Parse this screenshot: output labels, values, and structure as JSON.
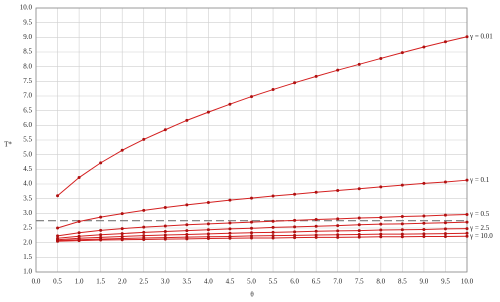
{
  "chart_data": {
    "type": "line",
    "x_label": "θ",
    "y_label": "T*",
    "x": [
      0.5,
      1.0,
      1.5,
      2.0,
      2.5,
      3.0,
      3.5,
      4.0,
      4.5,
      5.0,
      5.5,
      6.0,
      6.5,
      7.0,
      7.5,
      8.0,
      8.5,
      9.0,
      9.5,
      10.0
    ],
    "series": [
      {
        "name": "γ = 0.01",
        "values": [
          3.6,
          4.22,
          4.72,
          5.15,
          5.52,
          5.85,
          6.17,
          6.45,
          6.72,
          6.98,
          7.22,
          7.45,
          7.67,
          7.88,
          8.08,
          8.28,
          8.48,
          8.67,
          8.85,
          9.02
        ]
      },
      {
        "name": "γ = 0.1",
        "values": [
          2.5,
          2.72,
          2.87,
          2.99,
          3.1,
          3.2,
          3.29,
          3.37,
          3.45,
          3.52,
          3.59,
          3.65,
          3.72,
          3.78,
          3.84,
          3.9,
          3.96,
          4.02,
          4.07,
          4.13
        ]
      },
      {
        "name": "γ = 0.5",
        "values": [
          2.23,
          2.34,
          2.42,
          2.48,
          2.53,
          2.57,
          2.61,
          2.64,
          2.67,
          2.7,
          2.73,
          2.76,
          2.79,
          2.81,
          2.84,
          2.86,
          2.89,
          2.91,
          2.94,
          2.96
        ]
      },
      {
        "values": [
          2.15,
          2.22,
          2.27,
          2.31,
          2.35,
          2.38,
          2.41,
          2.44,
          2.47,
          2.49,
          2.52,
          2.54,
          2.56,
          2.58,
          2.61,
          2.63,
          2.64,
          2.66,
          2.68,
          2.7
        ]
      },
      {
        "name": "γ = 2.5",
        "values": [
          2.1,
          2.15,
          2.18,
          2.21,
          2.24,
          2.26,
          2.28,
          2.3,
          2.32,
          2.34,
          2.35,
          2.37,
          2.39,
          2.4,
          2.41,
          2.43,
          2.44,
          2.45,
          2.47,
          2.48
        ]
      },
      {
        "values": [
          2.07,
          2.1,
          2.12,
          2.14,
          2.16,
          2.17,
          2.19,
          2.2,
          2.21,
          2.23,
          2.24,
          2.25,
          2.26,
          2.27,
          2.28,
          2.29,
          2.29,
          2.3,
          2.31,
          2.32
        ]
      },
      {
        "name": "γ = 10.0",
        "values": [
          2.05,
          2.07,
          2.09,
          2.1,
          2.11,
          2.12,
          2.13,
          2.14,
          2.15,
          2.16,
          2.16,
          2.17,
          2.18,
          2.18,
          2.19,
          2.2,
          2.2,
          2.21,
          2.21,
          2.22
        ]
      }
    ],
    "color": "#d42020",
    "hline": 2.75,
    "xlim": [
      0,
      10
    ],
    "ylim": [
      1,
      10
    ],
    "xticks": [
      {
        "value": 0,
        "label": "0.0"
      },
      0.5,
      {
        "value": 1,
        "label": "1.0"
      },
      1.5,
      {
        "value": 2,
        "label": "2.0"
      },
      2.5,
      {
        "value": 3,
        "label": "3.0"
      },
      3.5,
      {
        "value": 4,
        "label": "4.0"
      },
      4.5,
      {
        "value": 5,
        "label": "5.0"
      },
      5.5,
      {
        "value": 6,
        "label": "6.0"
      },
      6.5,
      {
        "value": 7,
        "label": "7.0"
      },
      7.5,
      {
        "value": 8,
        "label": "8.0"
      },
      8.5,
      {
        "value": 9,
        "label": "9.0"
      },
      9.5,
      {
        "value": 10,
        "label": "10.0"
      }
    ],
    "yticks": [
      {
        "value": 1,
        "label": "1.0"
      },
      1.5,
      {
        "value": 2,
        "label": "2.0"
      },
      2.5,
      {
        "value": 3,
        "label": "3.0"
      },
      3.5,
      {
        "value": 4,
        "label": "4.0"
      },
      4.5,
      {
        "value": 5,
        "label": "5.0"
      },
      5.5,
      {
        "value": 6,
        "label": "6.0"
      },
      6.5,
      {
        "value": 7,
        "label": "7.0"
      },
      7.5,
      {
        "value": 8,
        "label": "8.0"
      },
      8.5,
      {
        "value": 9,
        "label": "9.0"
      },
      9.5,
      {
        "value": 10,
        "label": "10.0"
      }
    ],
    "grid": true
  }
}
